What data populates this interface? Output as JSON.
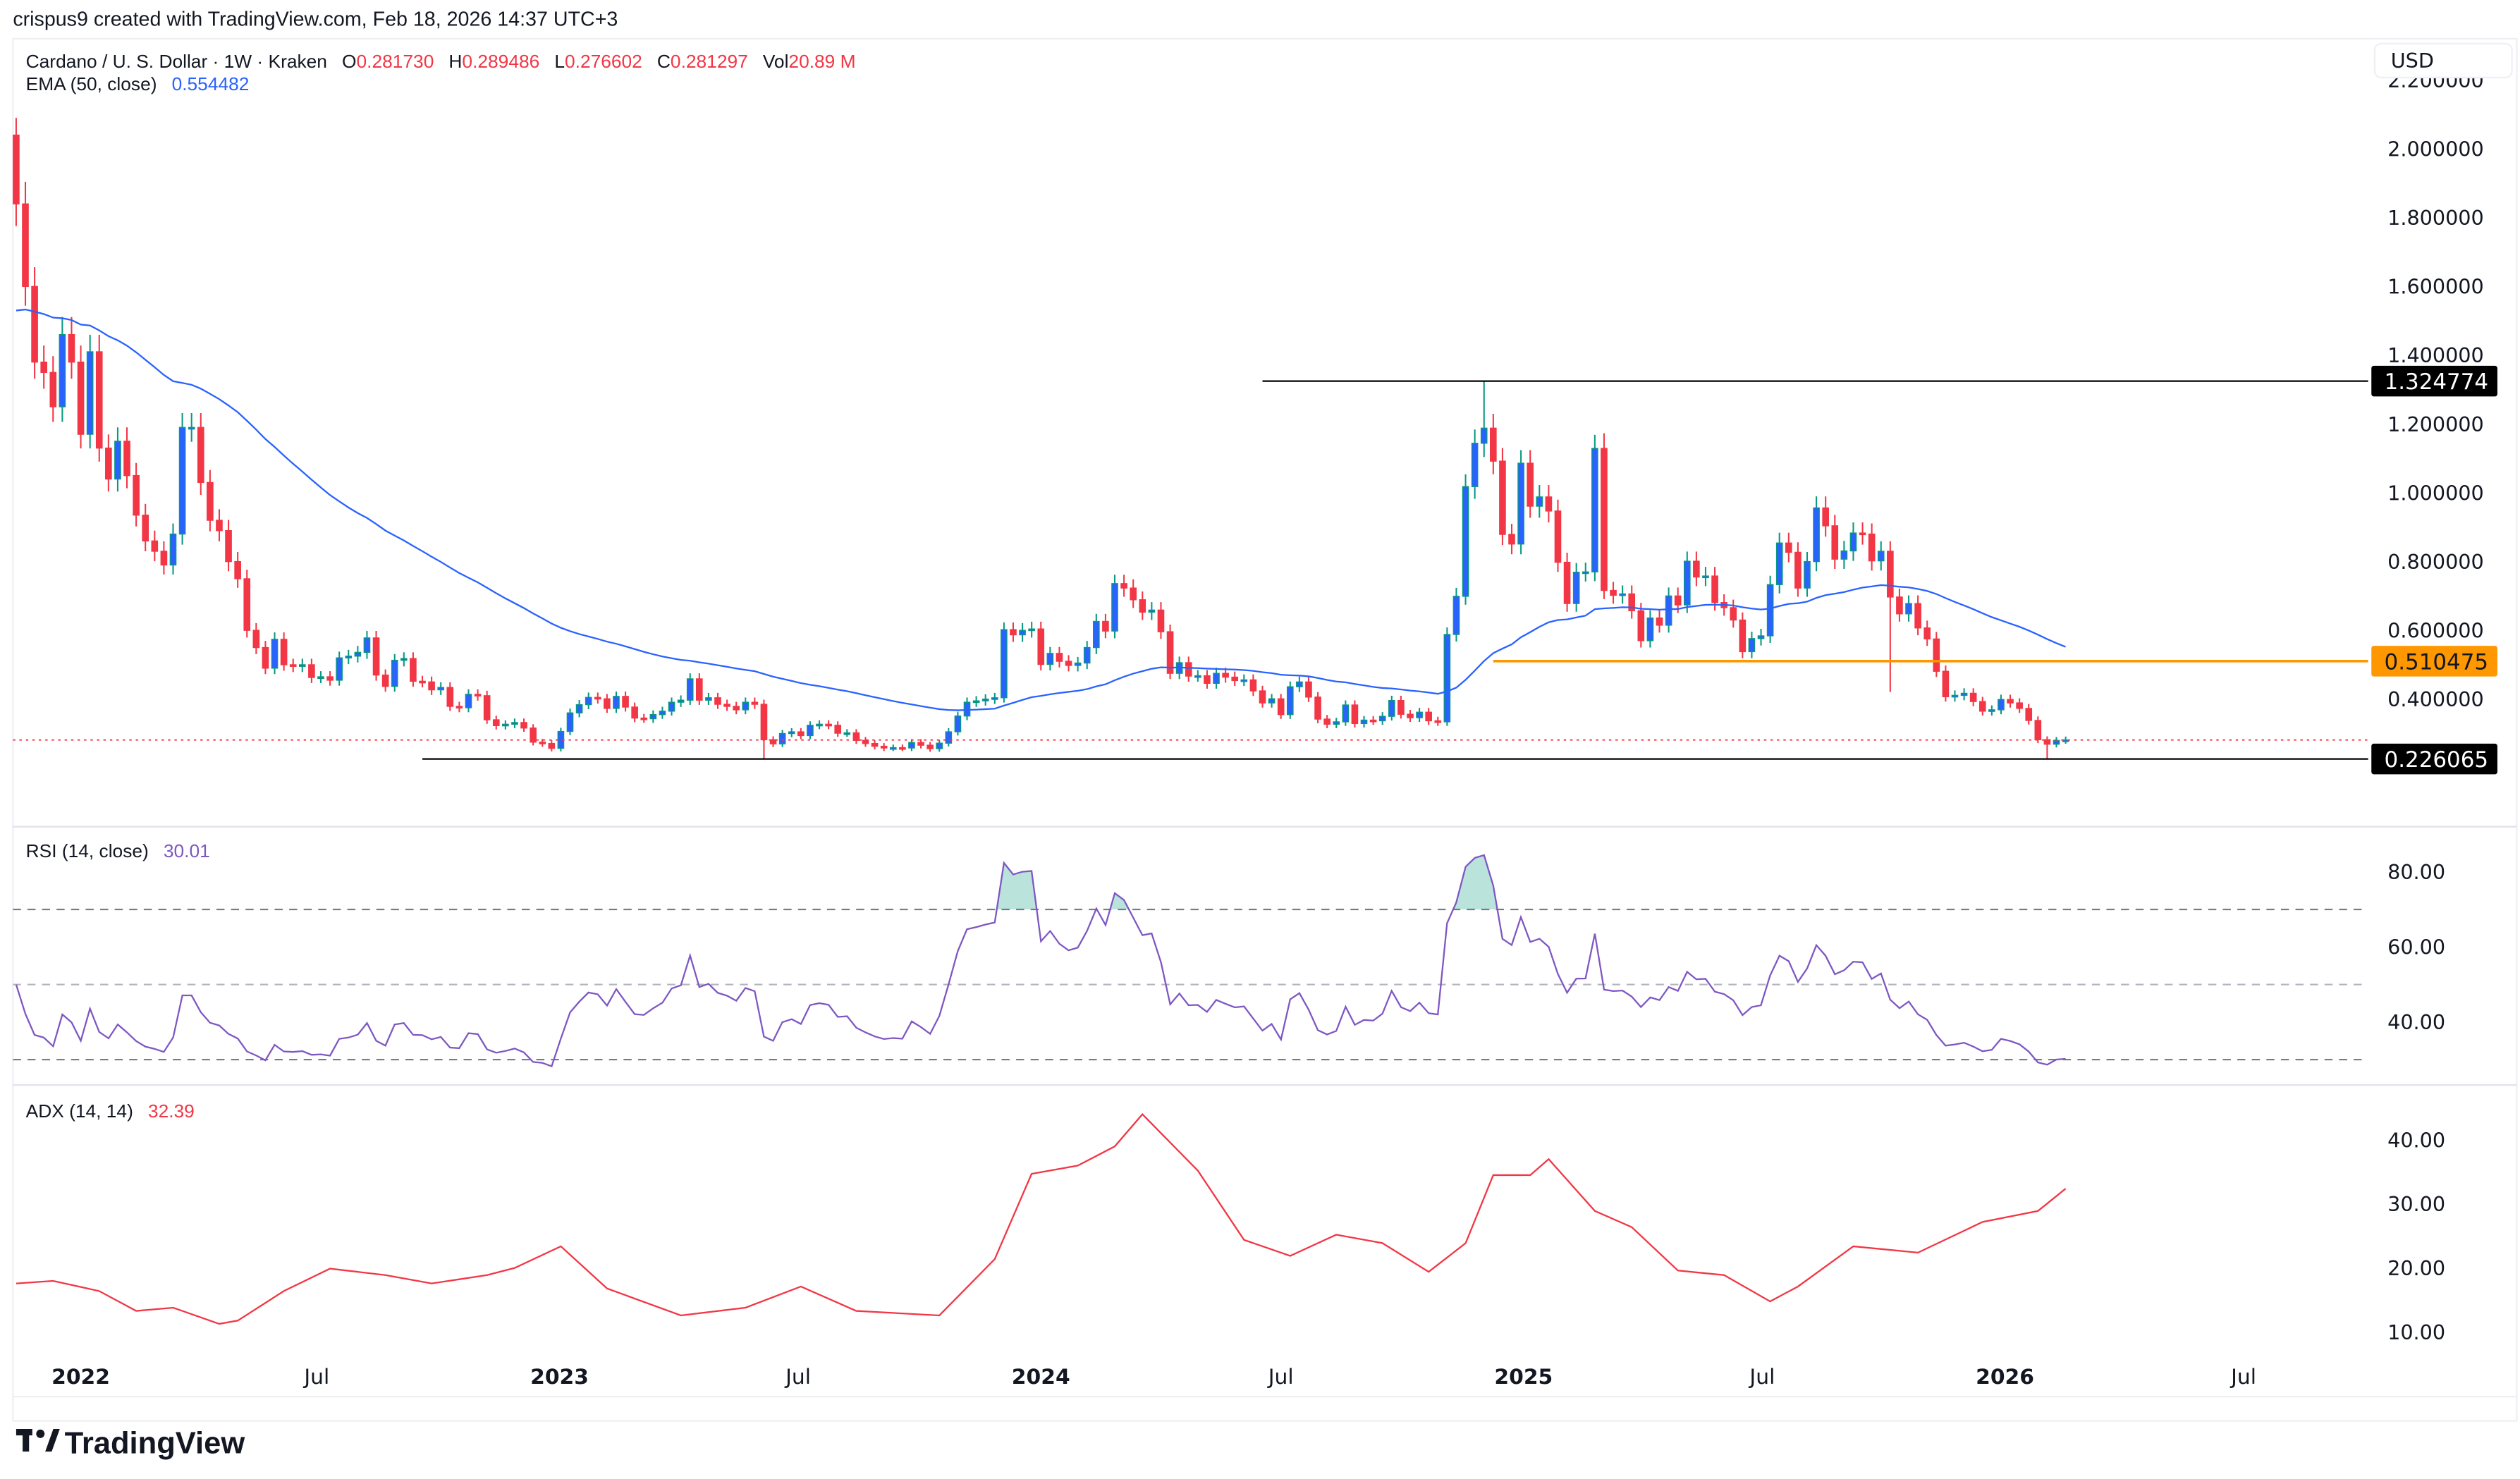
{
  "header": {
    "attribution": "crispus9 created with TradingView.com, Feb 18, 2026 14:37 UTC+3"
  },
  "legend": {
    "symbol": "Cardano / U. S. Dollar · 1W · Kraken",
    "o_label": "O",
    "o_value": "0.281730",
    "h_label": "H",
    "h_value": "0.289486",
    "l_label": "L",
    "l_value": "0.276602",
    "c_label": "C",
    "c_value": "0.281297",
    "vol_label": "Vol",
    "vol_value": "20.89 M",
    "ema_label": "EMA (50, close)",
    "ema_value": "0.554482"
  },
  "price_axis": {
    "currency": "USD",
    "ticks": [
      "2.200000",
      "2.000000",
      "1.800000",
      "1.600000",
      "1.400000",
      "1.200000",
      "1.000000",
      "0.800000",
      "0.600000",
      "0.400000"
    ],
    "tick_values": [
      2.2,
      2.0,
      1.8,
      1.6,
      1.4,
      1.2,
      1.0,
      0.8,
      0.6,
      0.4
    ]
  },
  "rsi": {
    "label": "RSI (14, close)",
    "value": "30.01",
    "ticks": [
      "80.00",
      "60.00",
      "40.00"
    ],
    "tick_values": [
      80,
      60,
      40
    ],
    "levels": [
      70,
      50,
      30
    ]
  },
  "adx": {
    "label": "ADX (14, 14)",
    "value": "32.39",
    "ticks": [
      "40.00",
      "30.00",
      "20.00",
      "10.00"
    ],
    "tick_values": [
      40,
      30,
      20,
      10
    ]
  },
  "time_axis": {
    "ticks": [
      {
        "label": "2022",
        "date": "2022-01-03"
      },
      {
        "label": "Jul",
        "date": "2022-07-01"
      },
      {
        "label": "2023",
        "date": "2023-01-01"
      },
      {
        "label": "Jul",
        "date": "2023-07-01"
      },
      {
        "label": "2024",
        "date": "2024-01-01"
      },
      {
        "label": "Jul",
        "date": "2024-07-01"
      },
      {
        "label": "2025",
        "date": "2025-01-01"
      },
      {
        "label": "Jul",
        "date": "2025-07-01"
      },
      {
        "label": "2026",
        "date": "2026-01-01"
      },
      {
        "label": "Jul",
        "date": "2026-07-01"
      }
    ]
  },
  "brand": {
    "name": "TradingView"
  },
  "colors": {
    "up_body": "#2962ff",
    "up_border": "#089981",
    "down": "#f23645",
    "ema": "#2962ff",
    "rsi": "#7e57c2",
    "adx": "#f23645",
    "support": "#ff9800",
    "line": "#000000"
  },
  "chart_data": {
    "type": "candlestick",
    "interval": "1W",
    "x_start": "2021-11-15",
    "first_open": 2.04,
    "close": [
      1.84,
      1.6,
      1.38,
      1.35,
      1.25,
      1.46,
      1.38,
      1.17,
      1.41,
      1.13,
      1.04,
      1.15,
      1.05,
      0.935,
      0.86,
      0.83,
      0.79,
      0.88,
      1.19,
      1.19,
      1.03,
      0.92,
      0.89,
      0.8,
      0.75,
      0.6,
      0.55,
      0.49,
      0.574,
      0.5,
      0.496,
      0.5,
      0.463,
      0.465,
      0.455,
      0.52,
      0.525,
      0.536,
      0.578,
      0.47,
      0.437,
      0.513,
      0.518,
      0.452,
      0.45,
      0.427,
      0.434,
      0.379,
      0.375,
      0.414,
      0.41,
      0.34,
      0.323,
      0.327,
      0.332,
      0.316,
      0.275,
      0.271,
      0.257,
      0.306,
      0.36,
      0.384,
      0.405,
      0.401,
      0.373,
      0.408,
      0.377,
      0.345,
      0.343,
      0.355,
      0.365,
      0.391,
      0.397,
      0.459,
      0.397,
      0.404,
      0.385,
      0.379,
      0.369,
      0.391,
      0.385,
      0.282,
      0.27,
      0.3,
      0.305,
      0.294,
      0.324,
      0.327,
      0.324,
      0.301,
      0.302,
      0.28,
      0.271,
      0.263,
      0.258,
      0.259,
      0.258,
      0.274,
      0.266,
      0.256,
      0.272,
      0.305,
      0.351,
      0.391,
      0.395,
      0.4,
      0.404,
      0.602,
      0.587,
      0.6,
      0.604,
      0.501,
      0.533,
      0.51,
      0.498,
      0.505,
      0.55,
      0.626,
      0.598,
      0.736,
      0.723,
      0.689,
      0.653,
      0.659,
      0.596,
      0.475,
      0.506,
      0.467,
      0.468,
      0.446,
      0.475,
      0.464,
      0.454,
      0.456,
      0.424,
      0.389,
      0.401,
      0.355,
      0.436,
      0.45,
      0.406,
      0.342,
      0.327,
      0.334,
      0.383,
      0.329,
      0.339,
      0.337,
      0.35,
      0.396,
      0.356,
      0.346,
      0.362,
      0.337,
      0.334,
      0.588,
      0.699,
      1.018,
      1.144,
      1.188,
      1.092,
      0.879,
      0.851,
      1.086,
      0.961,
      0.988,
      0.947,
      0.798,
      0.678,
      0.769,
      0.77,
      1.129,
      0.716,
      0.702,
      0.706,
      0.657,
      0.57,
      0.636,
      0.615,
      0.7,
      0.674,
      0.801,
      0.755,
      0.758,
      0.681,
      0.666,
      0.63,
      0.538,
      0.576,
      0.584,
      0.733,
      0.854,
      0.827,
      0.723,
      0.8,
      0.956,
      0.904,
      0.807,
      0.831,
      0.883,
      0.88,
      0.802,
      0.83,
      0.697,
      0.648,
      0.678,
      0.607,
      0.575,
      0.481,
      0.407,
      0.411,
      0.417,
      0.393,
      0.365,
      0.369,
      0.399,
      0.389,
      0.373,
      0.338,
      0.282,
      0.269,
      0.28,
      0.281297
    ],
    "wick_extremes": [
      {
        "date": "2024-12-02",
        "high": 1.324774
      },
      {
        "date": "2026-02-02",
        "low": 0.226065
      },
      {
        "date": "2023-06-05",
        "low": 0.227
      },
      {
        "date": "2025-10-06",
        "low": 0.421
      },
      {
        "date": "2025-03-03",
        "high": 1.173
      },
      {
        "date": "2021-11-15",
        "high": 2.09
      }
    ],
    "ema50_first": 1.53,
    "last_price": 0.281297,
    "y_scale": "linear",
    "ylim": [
      0.2,
      2.2
    ],
    "horizontal_lines": [
      {
        "value": 1.324774,
        "label": "1.324774",
        "from": "2024-06-17",
        "color": "#000000"
      },
      {
        "value": 0.510475,
        "label": "0.510475",
        "from": "2024-12-09",
        "color": "#ff9800"
      },
      {
        "value": 0.226065,
        "label": "0.226065",
        "from": "2022-09-19",
        "color": "#000000"
      }
    ],
    "adx_series": [
      [
        "2021-11-15",
        17.6
      ],
      [
        "2021-12-13",
        18
      ],
      [
        "2022-01-17",
        16.4
      ],
      [
        "2022-02-14",
        13.3
      ],
      [
        "2022-03-14",
        13.8
      ],
      [
        "2022-04-18",
        11.3
      ],
      [
        "2022-05-02",
        11.8
      ],
      [
        "2022-06-06",
        16.4
      ],
      [
        "2022-07-11",
        19.9
      ],
      [
        "2022-08-22",
        18.9
      ],
      [
        "2022-09-26",
        17.6
      ],
      [
        "2022-11-07",
        18.9
      ],
      [
        "2022-11-28",
        20
      ],
      [
        "2023-01-02",
        23.4
      ],
      [
        "2023-02-06",
        16.8
      ],
      [
        "2023-04-03",
        12.6
      ],
      [
        "2023-05-22",
        13.8
      ],
      [
        "2023-07-03",
        17.1
      ],
      [
        "2023-08-14",
        13.3
      ],
      [
        "2023-10-16",
        12.6
      ],
      [
        "2023-11-27",
        21.4
      ],
      [
        "2023-12-25",
        34.7
      ],
      [
        "2024-01-29",
        36
      ],
      [
        "2024-02-26",
        39
      ],
      [
        "2024-03-18",
        44
      ],
      [
        "2024-04-29",
        35.2
      ],
      [
        "2024-06-03",
        24.4
      ],
      [
        "2024-07-08",
        21.9
      ],
      [
        "2024-08-12",
        25.2
      ],
      [
        "2024-09-16",
        23.9
      ],
      [
        "2024-10-21",
        19.4
      ],
      [
        "2024-11-18",
        23.9
      ],
      [
        "2024-12-09",
        34.5
      ],
      [
        "2025-01-06",
        34.5
      ],
      [
        "2025-01-20",
        37
      ],
      [
        "2025-02-24",
        28.9
      ],
      [
        "2025-03-24",
        26.4
      ],
      [
        "2025-04-28",
        19.6
      ],
      [
        "2025-06-02",
        18.9
      ],
      [
        "2025-07-07",
        14.8
      ],
      [
        "2025-07-28",
        17.1
      ],
      [
        "2025-09-08",
        23.4
      ],
      [
        "2025-10-27",
        22.4
      ],
      [
        "2025-12-15",
        27.2
      ],
      [
        "2026-01-26",
        28.9
      ],
      [
        "2026-02-16",
        32.39
      ]
    ]
  }
}
